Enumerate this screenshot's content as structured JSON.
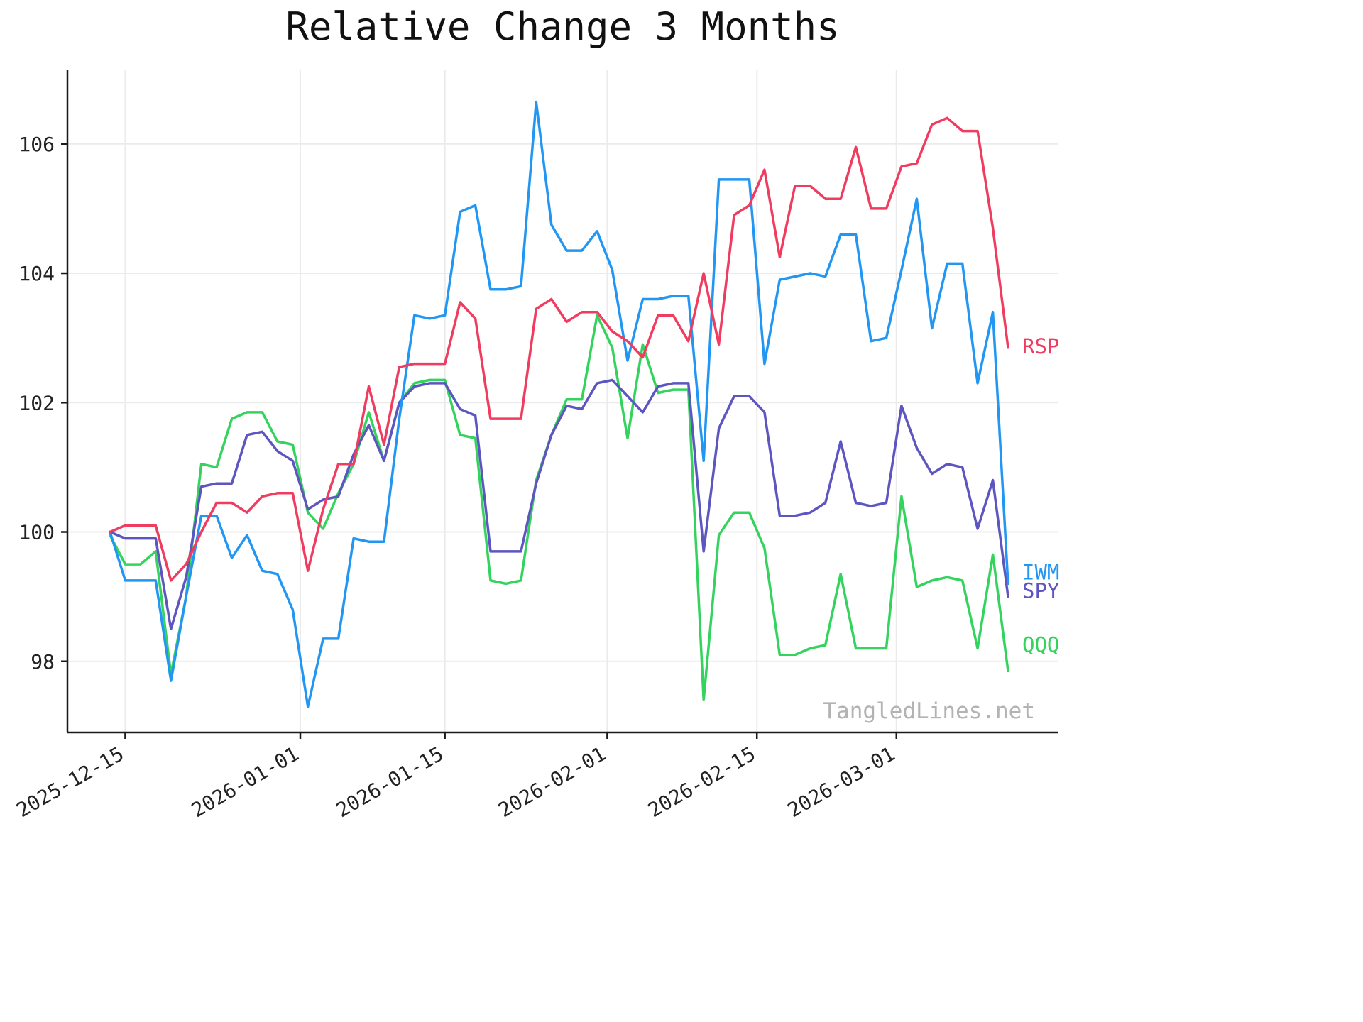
{
  "page": {
    "title": "Relative Change 3 Months",
    "watermark": "TangledLines.net"
  },
  "chart_data": {
    "type": "line",
    "title": "Relative Change 3 Months",
    "xlabel": "",
    "ylabel": "",
    "grid": true,
    "legend_position": "right-end-labels",
    "ylim": [
      96.9,
      107.15
    ],
    "yticks": [
      98,
      100,
      102,
      104,
      106
    ],
    "xticks": [
      "2025-12-15",
      "2026-01-01",
      "2026-01-15",
      "2026-02-01",
      "2026-02-15",
      "2026-03-01"
    ],
    "watermark": "TangledLines.net",
    "x": [
      "2025-12-12",
      "2025-12-15",
      "2025-12-16",
      "2025-12-17",
      "2025-12-18",
      "2025-12-19",
      "2025-12-22",
      "2025-12-23",
      "2025-12-24",
      "2025-12-26",
      "2025-12-29",
      "2025-12-30",
      "2025-12-31",
      "2026-01-02",
      "2026-01-05",
      "2026-01-06",
      "2026-01-07",
      "2026-01-08",
      "2026-01-09",
      "2026-01-12",
      "2026-01-13",
      "2026-01-14",
      "2026-01-15",
      "2026-01-16",
      "2026-01-20",
      "2026-01-21",
      "2026-01-22",
      "2026-01-23",
      "2026-01-26",
      "2026-01-27",
      "2026-01-28",
      "2026-01-29",
      "2026-01-30",
      "2026-02-02",
      "2026-02-03",
      "2026-02-04",
      "2026-02-05",
      "2026-02-06",
      "2026-02-09",
      "2026-02-10",
      "2026-02-11",
      "2026-02-12",
      "2026-02-13",
      "2026-02-17",
      "2026-02-18",
      "2026-02-19",
      "2026-02-20",
      "2026-02-23",
      "2026-02-24",
      "2026-02-25",
      "2026-02-26",
      "2026-02-27",
      "2026-03-02",
      "2026-03-03",
      "2026-03-04",
      "2026-03-05",
      "2026-03-06",
      "2026-03-09",
      "2026-03-10",
      "2026-03-11"
    ],
    "series": [
      {
        "name": "RSP",
        "color": "#ef3c5f",
        "values": [
          100.0,
          100.1,
          100.1,
          100.1,
          99.25,
          99.5,
          100.0,
          100.45,
          100.45,
          100.3,
          100.55,
          100.6,
          100.6,
          99.4,
          100.35,
          101.05,
          101.05,
          102.25,
          101.35,
          102.55,
          102.6,
          102.6,
          102.6,
          103.55,
          103.3,
          101.75,
          101.75,
          101.75,
          103.45,
          103.6,
          103.25,
          103.4,
          103.4,
          103.1,
          102.95,
          102.7,
          103.35,
          103.35,
          102.95,
          104.0,
          102.9,
          104.9,
          105.05,
          105.6,
          104.25,
          105.35,
          105.35,
          105.15,
          105.15,
          105.95,
          105.0,
          105.0,
          105.65,
          105.7,
          106.3,
          106.4,
          106.2,
          106.2,
          104.7,
          102.85
        ]
      },
      {
        "name": "IWM",
        "color": "#2196f3",
        "values": [
          100.0,
          99.25,
          99.25,
          99.25,
          97.7,
          99.0,
          100.25,
          100.25,
          99.6,
          99.95,
          99.4,
          99.35,
          98.8,
          97.3,
          98.35,
          98.35,
          99.9,
          99.85,
          99.85,
          101.75,
          103.35,
          103.3,
          103.35,
          104.95,
          105.05,
          103.75,
          103.75,
          103.8,
          106.65,
          104.75,
          104.35,
          104.35,
          104.65,
          104.05,
          102.65,
          103.6,
          103.6,
          103.65,
          103.65,
          101.1,
          105.45,
          105.45,
          105.45,
          102.6,
          103.9,
          103.95,
          104.0,
          103.95,
          104.6,
          104.6,
          102.95,
          103.0,
          104.05,
          105.15,
          103.15,
          104.15,
          104.15,
          102.3,
          103.4,
          99.2
        ]
      },
      {
        "name": "SPY",
        "color": "#5d55c0",
        "values": [
          100.0,
          99.9,
          99.9,
          99.9,
          98.5,
          99.3,
          100.7,
          100.75,
          100.75,
          101.5,
          101.55,
          101.25,
          101.1,
          100.35,
          100.5,
          100.55,
          101.2,
          101.65,
          101.1,
          102.0,
          102.25,
          102.3,
          102.3,
          101.9,
          101.8,
          99.7,
          99.7,
          99.7,
          100.75,
          101.5,
          101.95,
          101.9,
          102.3,
          102.35,
          102.1,
          101.85,
          102.25,
          102.3,
          102.3,
          99.7,
          101.6,
          102.1,
          102.1,
          101.85,
          100.25,
          100.25,
          100.3,
          100.45,
          101.4,
          100.45,
          100.4,
          100.45,
          101.95,
          101.3,
          100.9,
          101.05,
          101.0,
          100.05,
          100.8,
          99.0
        ]
      },
      {
        "name": "QQQ",
        "color": "#34d35e",
        "values": [
          99.95,
          99.5,
          99.5,
          99.7,
          97.8,
          99.0,
          101.05,
          101.0,
          101.75,
          101.85,
          101.85,
          101.4,
          101.35,
          100.3,
          100.05,
          100.6,
          101.05,
          101.85,
          101.1,
          102.0,
          102.3,
          102.35,
          102.35,
          101.5,
          101.45,
          99.25,
          99.2,
          99.25,
          100.8,
          101.5,
          102.05,
          102.05,
          103.35,
          102.85,
          101.45,
          102.9,
          102.15,
          102.2,
          102.2,
          97.4,
          99.95,
          100.3,
          100.3,
          99.75,
          98.1,
          98.1,
          98.2,
          98.25,
          99.35,
          98.2,
          98.2,
          98.2,
          100.55,
          99.15,
          99.25,
          99.3,
          99.25,
          98.2,
          99.65,
          97.85
        ]
      }
    ]
  }
}
